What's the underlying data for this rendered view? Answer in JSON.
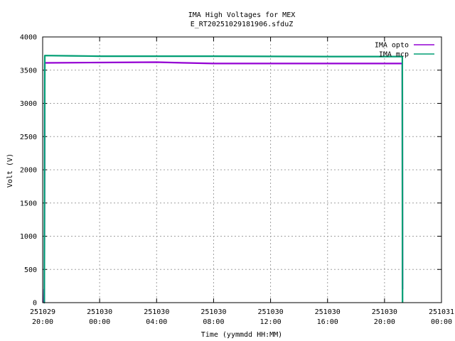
{
  "chart_data": {
    "type": "line",
    "title": "IMA High Voltages for MEX",
    "subtitle": "E_RT20251029181906.sfduZ",
    "xlabel": "Time (yymmdd HH:MM)",
    "ylabel": "Volt (V)",
    "xlim": [
      "2025-10-29 20:00",
      "2025-10-31 00:00"
    ],
    "ylim": [
      0,
      4000
    ],
    "grid": true,
    "legend_position": "top-right",
    "x_ticks": [
      {
        "date": "251029",
        "time": "20:00",
        "t": "2025-10-29 20:00"
      },
      {
        "date": "251030",
        "time": "00:00",
        "t": "2025-10-30 00:00"
      },
      {
        "date": "251030",
        "time": "04:00",
        "t": "2025-10-30 04:00"
      },
      {
        "date": "251030",
        "time": "08:00",
        "t": "2025-10-30 08:00"
      },
      {
        "date": "251030",
        "time": "12:00",
        "t": "2025-10-30 12:00"
      },
      {
        "date": "251030",
        "time": "16:00",
        "t": "2025-10-30 16:00"
      },
      {
        "date": "251030",
        "time": "20:00",
        "t": "2025-10-30 20:00"
      },
      {
        "date": "251031",
        "time": "00:00",
        "t": "2025-10-31 00:00"
      }
    ],
    "y_ticks": [
      0,
      500,
      1000,
      1500,
      2000,
      2500,
      3000,
      3500,
      4000
    ],
    "series": [
      {
        "name": "IMA opto",
        "color": "#9400d3",
        "points": [
          [
            "2025-10-29 20:05",
            0
          ],
          [
            "2025-10-29 20:06",
            200
          ],
          [
            "2025-10-29 20:07",
            0
          ],
          [
            "2025-10-29 20:09",
            3610
          ],
          [
            "2025-10-30 00:00",
            3615
          ],
          [
            "2025-10-30 04:00",
            3620
          ],
          [
            "2025-10-30 06:00",
            3610
          ],
          [
            "2025-10-30 08:00",
            3600
          ],
          [
            "2025-10-30 12:00",
            3600
          ],
          [
            "2025-10-30 16:00",
            3600
          ],
          [
            "2025-10-30 21:00",
            3600
          ],
          [
            "2025-10-30 21:15",
            3600
          ],
          [
            "2025-10-30 21:16",
            200
          ]
        ]
      },
      {
        "name": "IMA mcp",
        "color": "#009e73",
        "points": [
          [
            "2025-10-29 20:05",
            0
          ],
          [
            "2025-10-29 20:07",
            0
          ],
          [
            "2025-10-29 20:09",
            3720
          ],
          [
            "2025-10-29 22:00",
            3715
          ],
          [
            "2025-10-30 00:00",
            3710
          ],
          [
            "2025-10-30 08:00",
            3710
          ],
          [
            "2025-10-30 16:00",
            3705
          ],
          [
            "2025-10-30 21:15",
            3705
          ],
          [
            "2025-10-30 21:16",
            0
          ]
        ]
      }
    ]
  }
}
